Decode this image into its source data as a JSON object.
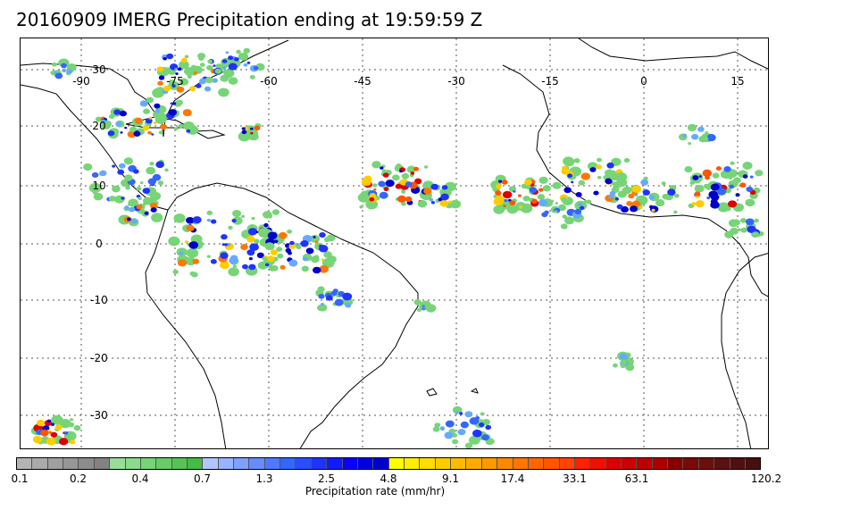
{
  "title": "20160909 IMERG Precipitation ending at 19:59:59 Z",
  "map": {
    "lon_labels": [
      "-90",
      "-75",
      "-60",
      "-45",
      "-30",
      "-15",
      "0",
      "15"
    ],
    "lat_labels": [
      "30",
      "20",
      "10",
      "0",
      "-10",
      "-20",
      "-30"
    ],
    "grid_lines": true,
    "colors": {
      "coast": "#000000",
      "grid": "#555555"
    }
  },
  "colorbar": {
    "title": "Precipitation rate (mm/hr)",
    "tick_labels": [
      "0.1",
      "0.2",
      "0.4",
      "0.7",
      "1.3",
      "2.5",
      "4.8",
      "9.1",
      "17.4",
      "33.1",
      "63.1",
      "120.2"
    ],
    "colors": [
      "#b4b4b4",
      "#aaaaaa",
      "#a0a0a0",
      "#969696",
      "#8c8c8c",
      "#828282",
      "#99dd99",
      "#88dd88",
      "#77d477",
      "#66cc66",
      "#55c455",
      "#44bb44",
      "#b3c6ff",
      "#99b3ff",
      "#80a0ff",
      "#668cff",
      "#4d79ff",
      "#3366ff",
      "#2a4dff",
      "#1f33ff",
      "#141aff",
      "#0a00ff",
      "#0000e6",
      "#0000cc",
      "#ffff00",
      "#ffee00",
      "#ffdd00",
      "#ffcc00",
      "#ffbb00",
      "#ffaa00",
      "#ff9900",
      "#ff8800",
      "#ff7700",
      "#ff6600",
      "#ff5500",
      "#ff4400",
      "#ff2200",
      "#ee1100",
      "#dd0000",
      "#cc0000",
      "#bb0000",
      "#aa0000",
      "#8b0000",
      "#7a0a0a",
      "#6b0f0f",
      "#5c1010",
      "#501010",
      "#441010"
    ]
  }
}
